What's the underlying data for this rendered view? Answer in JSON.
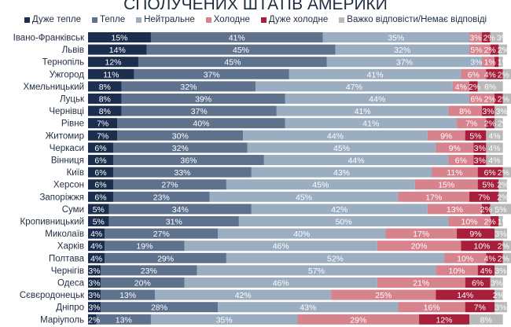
{
  "chart_data": {
    "type": "bar",
    "orientation": "horizontal",
    "stacked": true,
    "title": "СПОЛУЧЕНИХ ШТАТІВ АМЕРИКИ",
    "legend_position": "top",
    "xlim": [
      0,
      100
    ],
    "unit": "%",
    "categories": [
      "Івано-Франківськ",
      "Львів",
      "Тернопіль",
      "Ужгород",
      "Хмельницький",
      "Луцьк",
      "Чернівці",
      "Рівне",
      "Житомир",
      "Черкаси",
      "Вінниця",
      "Київ",
      "Херсон",
      "Запоріжжя",
      "Суми",
      "Кропивницький",
      "Миколаїв",
      "Харків",
      "Полтава",
      "Чернігів",
      "Одеса",
      "Сєвєродонецьк",
      "Дніпро",
      "Маріуполь"
    ],
    "series": [
      {
        "name": "Дуже тепле",
        "color": "#1b2e4e",
        "values": [
          15,
          14,
          12,
          11,
          8,
          8,
          8,
          7,
          7,
          6,
          6,
          6,
          6,
          6,
          5,
          5,
          4,
          4,
          4,
          3,
          3,
          3,
          3,
          2
        ]
      },
      {
        "name": "Тепле",
        "color": "#5e728e",
        "values": [
          41,
          45,
          45,
          37,
          32,
          39,
          37,
          40,
          30,
          32,
          36,
          33,
          27,
          23,
          34,
          31,
          27,
          19,
          29,
          23,
          20,
          13,
          28,
          13
        ]
      },
      {
        "name": "Нейтральне",
        "color": "#9badc0",
        "values": [
          35,
          32,
          37,
          41,
          47,
          44,
          41,
          41,
          44,
          45,
          44,
          43,
          45,
          45,
          42,
          50,
          40,
          46,
          52,
          57,
          46,
          42,
          43,
          35
        ]
      },
      {
        "name": "Холодне",
        "color": "#d6838e",
        "values": [
          3,
          5,
          3,
          6,
          4,
          6,
          8,
          7,
          9,
          9,
          6,
          11,
          15,
          17,
          13,
          10,
          17,
          20,
          10,
          10,
          21,
          25,
          16,
          29
        ]
      },
      {
        "name": "Дуже холодне",
        "color": "#a71f3a",
        "values": [
          2,
          2,
          1,
          4,
          2,
          2,
          3,
          2,
          5,
          3,
          3,
          6,
          5,
          7,
          2,
          2,
          9,
          10,
          4,
          4,
          6,
          14,
          7,
          12
        ]
      },
      {
        "name": "Важко відповісти/Немає відповіді",
        "color": "#b9b9b9",
        "values": [
          3,
          2,
          1,
          2,
          6,
          2,
          3,
          2,
          4,
          4,
          4,
          2,
          2,
          2,
          5,
          1,
          3,
          2,
          2,
          3,
          3,
          2,
          3,
          8
        ]
      }
    ]
  }
}
